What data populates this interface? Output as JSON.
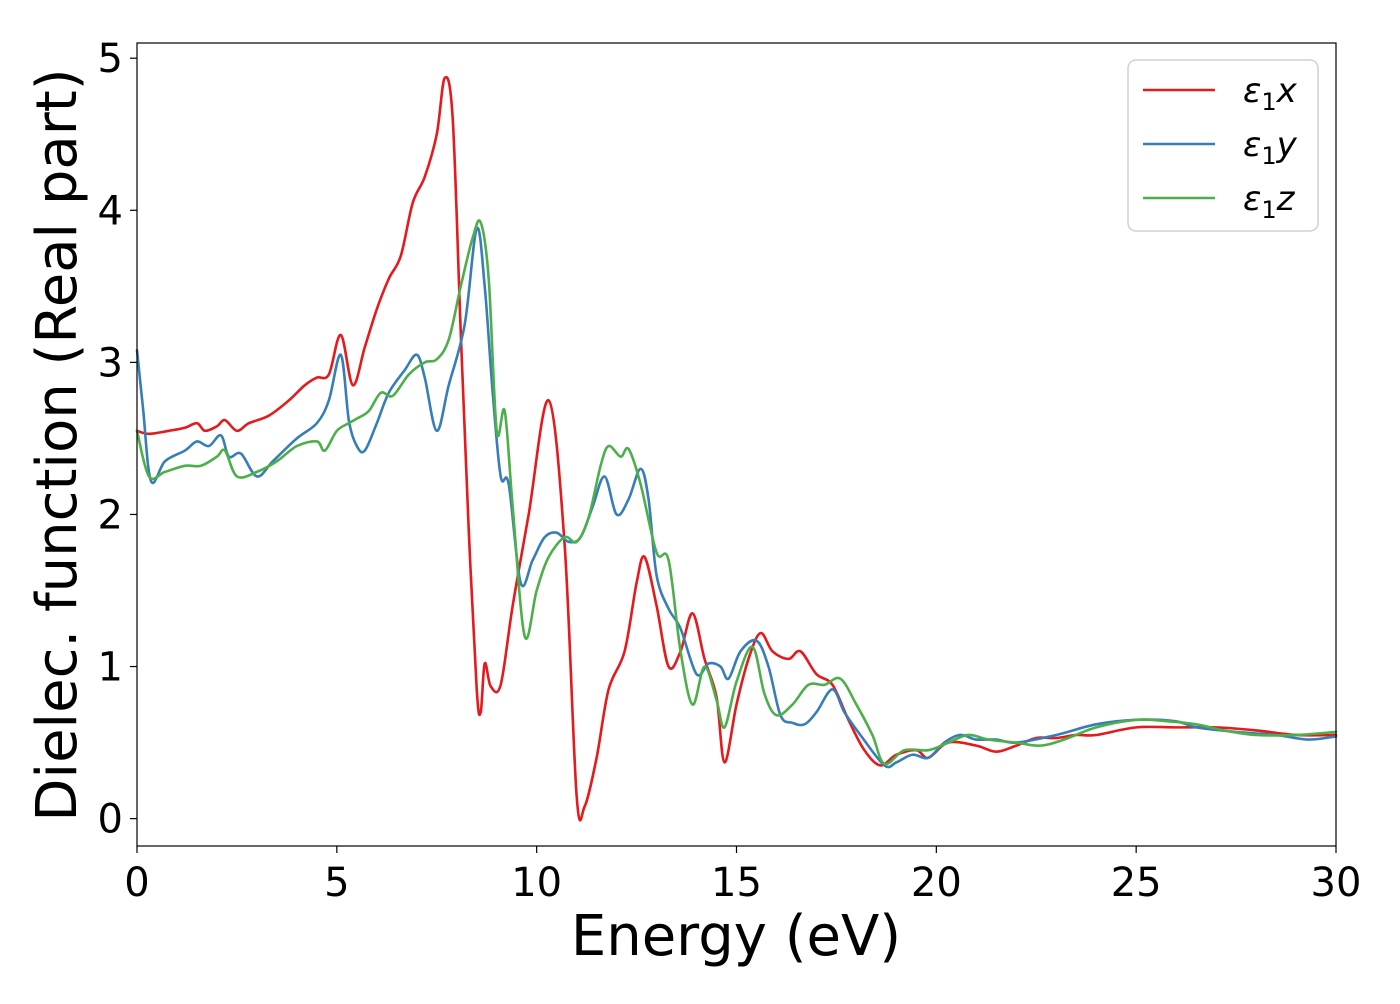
{
  "chart_data": {
    "type": "line",
    "xlabel": "Energy (eV)",
    "ylabel": "Dielec. function (Real part)",
    "xlim": [
      0,
      30
    ],
    "ylim": [
      -0.18,
      5.1
    ],
    "xticks": [
      "0",
      "5",
      "10",
      "15",
      "20",
      "25",
      "30"
    ],
    "yticks": [
      "0",
      "1",
      "2",
      "3",
      "4",
      "5"
    ],
    "grid": false,
    "legend_position": "top-right",
    "series": [
      {
        "name_main": "ε",
        "name_sub": "1",
        "name_suffix": "x",
        "color": "#e41a1c",
        "points": [
          [
            0,
            2.55
          ],
          [
            0.3,
            2.53
          ],
          [
            0.8,
            2.55
          ],
          [
            1.2,
            2.57
          ],
          [
            1.5,
            2.6
          ],
          [
            1.7,
            2.55
          ],
          [
            2,
            2.58
          ],
          [
            2.2,
            2.62
          ],
          [
            2.5,
            2.55
          ],
          [
            2.8,
            2.6
          ],
          [
            3.3,
            2.65
          ],
          [
            3.8,
            2.75
          ],
          [
            4.2,
            2.85
          ],
          [
            4.5,
            2.9
          ],
          [
            4.8,
            2.92
          ],
          [
            5.1,
            3.18
          ],
          [
            5.4,
            2.85
          ],
          [
            5.7,
            3.1
          ],
          [
            6,
            3.35
          ],
          [
            6.3,
            3.55
          ],
          [
            6.6,
            3.7
          ],
          [
            6.9,
            4.05
          ],
          [
            7.2,
            4.22
          ],
          [
            7.5,
            4.5
          ],
          [
            7.7,
            4.87
          ],
          [
            7.9,
            4.6
          ],
          [
            8.1,
            3.2
          ],
          [
            8.3,
            1.9
          ],
          [
            8.5,
            0.85
          ],
          [
            8.6,
            0.7
          ],
          [
            8.7,
            1.02
          ],
          [
            8.85,
            0.87
          ],
          [
            9.1,
            0.88
          ],
          [
            9.4,
            1.4
          ],
          [
            9.8,
            2.0
          ],
          [
            10.3,
            2.75
          ],
          [
            10.7,
            1.8
          ],
          [
            11.0,
            0.15
          ],
          [
            11.2,
            0.08
          ],
          [
            11.5,
            0.4
          ],
          [
            11.8,
            0.85
          ],
          [
            12.2,
            1.1
          ],
          [
            12.5,
            1.55
          ],
          [
            12.7,
            1.72
          ],
          [
            13.0,
            1.4
          ],
          [
            13.3,
            1.0
          ],
          [
            13.6,
            1.1
          ],
          [
            13.9,
            1.35
          ],
          [
            14.2,
            1.05
          ],
          [
            14.5,
            0.8
          ],
          [
            14.7,
            0.37
          ],
          [
            15.0,
            0.75
          ],
          [
            15.3,
            1.05
          ],
          [
            15.6,
            1.22
          ],
          [
            15.9,
            1.1
          ],
          [
            16.3,
            1.05
          ],
          [
            16.6,
            1.1
          ],
          [
            17.0,
            0.95
          ],
          [
            17.4,
            0.88
          ],
          [
            17.8,
            0.65
          ],
          [
            18.2,
            0.45
          ],
          [
            18.6,
            0.35
          ],
          [
            19.0,
            0.42
          ],
          [
            19.5,
            0.45
          ],
          [
            19.8,
            0.4
          ],
          [
            20.3,
            0.5
          ],
          [
            21.0,
            0.48
          ],
          [
            21.5,
            0.44
          ],
          [
            22.0,
            0.48
          ],
          [
            22.5,
            0.53
          ],
          [
            23.0,
            0.53
          ],
          [
            23.5,
            0.55
          ],
          [
            24.0,
            0.55
          ],
          [
            25.0,
            0.6
          ],
          [
            26.0,
            0.6
          ],
          [
            27.0,
            0.6
          ],
          [
            28.0,
            0.58
          ],
          [
            29.0,
            0.55
          ],
          [
            30.0,
            0.55
          ]
        ]
      },
      {
        "name_main": "ε",
        "name_sub": "1",
        "name_suffix": "y",
        "color": "#377eb8",
        "points": [
          [
            0,
            3.08
          ],
          [
            0.15,
            2.7
          ],
          [
            0.35,
            2.22
          ],
          [
            0.7,
            2.35
          ],
          [
            1.2,
            2.42
          ],
          [
            1.5,
            2.48
          ],
          [
            1.8,
            2.45
          ],
          [
            2.1,
            2.52
          ],
          [
            2.3,
            2.38
          ],
          [
            2.6,
            2.4
          ],
          [
            3.0,
            2.25
          ],
          [
            3.4,
            2.35
          ],
          [
            4.0,
            2.5
          ],
          [
            4.5,
            2.6
          ],
          [
            4.8,
            2.75
          ],
          [
            5.1,
            3.05
          ],
          [
            5.3,
            2.62
          ],
          [
            5.5,
            2.45
          ],
          [
            5.7,
            2.42
          ],
          [
            6.0,
            2.6
          ],
          [
            6.3,
            2.8
          ],
          [
            6.7,
            2.95
          ],
          [
            7.0,
            3.05
          ],
          [
            7.2,
            2.9
          ],
          [
            7.5,
            2.55
          ],
          [
            7.8,
            2.85
          ],
          [
            8.2,
            3.25
          ],
          [
            8.5,
            3.88
          ],
          [
            8.7,
            3.5
          ],
          [
            8.9,
            2.8
          ],
          [
            9.1,
            2.25
          ],
          [
            9.3,
            2.2
          ],
          [
            9.6,
            1.55
          ],
          [
            9.9,
            1.7
          ],
          [
            10.2,
            1.85
          ],
          [
            10.5,
            1.88
          ],
          [
            10.8,
            1.82
          ],
          [
            11.1,
            1.85
          ],
          [
            11.4,
            2.05
          ],
          [
            11.7,
            2.25
          ],
          [
            12.0,
            2.0
          ],
          [
            12.3,
            2.1
          ],
          [
            12.6,
            2.3
          ],
          [
            12.8,
            2.1
          ],
          [
            13.0,
            1.6
          ],
          [
            13.3,
            1.38
          ],
          [
            13.6,
            1.25
          ],
          [
            14.0,
            0.95
          ],
          [
            14.3,
            1.02
          ],
          [
            14.6,
            1.0
          ],
          [
            14.8,
            0.92
          ],
          [
            15.1,
            1.1
          ],
          [
            15.5,
            1.17
          ],
          [
            15.8,
            1.0
          ],
          [
            16.1,
            0.68
          ],
          [
            16.4,
            0.63
          ],
          [
            16.7,
            0.62
          ],
          [
            17.0,
            0.7
          ],
          [
            17.4,
            0.85
          ],
          [
            17.7,
            0.7
          ],
          [
            18.1,
            0.55
          ],
          [
            18.7,
            0.35
          ],
          [
            19.0,
            0.37
          ],
          [
            19.4,
            0.42
          ],
          [
            19.8,
            0.4
          ],
          [
            20.2,
            0.5
          ],
          [
            20.6,
            0.55
          ],
          [
            21.0,
            0.52
          ],
          [
            21.5,
            0.52
          ],
          [
            22.0,
            0.5
          ],
          [
            23.0,
            0.55
          ],
          [
            24.0,
            0.62
          ],
          [
            25.0,
            0.65
          ],
          [
            26.0,
            0.64
          ],
          [
            26.5,
            0.6
          ],
          [
            27.5,
            0.57
          ],
          [
            28.5,
            0.55
          ],
          [
            29.3,
            0.52
          ],
          [
            30.0,
            0.54
          ]
        ]
      },
      {
        "name_main": "ε",
        "name_sub": "1",
        "name_suffix": "z",
        "color": "#4daf4a",
        "points": [
          [
            0,
            2.55
          ],
          [
            0.3,
            2.25
          ],
          [
            0.7,
            2.28
          ],
          [
            1.2,
            2.32
          ],
          [
            1.6,
            2.32
          ],
          [
            2.0,
            2.38
          ],
          [
            2.2,
            2.42
          ],
          [
            2.5,
            2.25
          ],
          [
            3.0,
            2.28
          ],
          [
            3.5,
            2.35
          ],
          [
            4.0,
            2.45
          ],
          [
            4.5,
            2.48
          ],
          [
            4.7,
            2.42
          ],
          [
            5.0,
            2.55
          ],
          [
            5.3,
            2.6
          ],
          [
            5.5,
            2.63
          ],
          [
            5.8,
            2.68
          ],
          [
            6.1,
            2.8
          ],
          [
            6.4,
            2.78
          ],
          [
            6.8,
            2.92
          ],
          [
            7.2,
            3.0
          ],
          [
            7.5,
            3.02
          ],
          [
            7.8,
            3.15
          ],
          [
            8.1,
            3.5
          ],
          [
            8.4,
            3.82
          ],
          [
            8.6,
            3.92
          ],
          [
            8.8,
            3.55
          ],
          [
            9.0,
            2.55
          ],
          [
            9.2,
            2.68
          ],
          [
            9.4,
            2.05
          ],
          [
            9.7,
            1.2
          ],
          [
            10.0,
            1.5
          ],
          [
            10.3,
            1.72
          ],
          [
            10.7,
            1.85
          ],
          [
            11.0,
            1.82
          ],
          [
            11.3,
            1.98
          ],
          [
            11.6,
            2.32
          ],
          [
            11.8,
            2.45
          ],
          [
            12.1,
            2.38
          ],
          [
            12.3,
            2.43
          ],
          [
            12.6,
            2.2
          ],
          [
            13.0,
            1.75
          ],
          [
            13.3,
            1.7
          ],
          [
            13.6,
            1.1
          ],
          [
            13.9,
            0.75
          ],
          [
            14.2,
            1.0
          ],
          [
            14.5,
            0.78
          ],
          [
            14.7,
            0.6
          ],
          [
            15.0,
            0.9
          ],
          [
            15.4,
            1.13
          ],
          [
            15.7,
            0.82
          ],
          [
            16.0,
            0.68
          ],
          [
            16.4,
            0.75
          ],
          [
            16.8,
            0.88
          ],
          [
            17.2,
            0.88
          ],
          [
            17.6,
            0.92
          ],
          [
            18.0,
            0.75
          ],
          [
            18.4,
            0.55
          ],
          [
            18.7,
            0.36
          ],
          [
            19.2,
            0.45
          ],
          [
            19.8,
            0.45
          ],
          [
            20.3,
            0.5
          ],
          [
            20.8,
            0.55
          ],
          [
            21.3,
            0.52
          ],
          [
            22.0,
            0.5
          ],
          [
            22.6,
            0.48
          ],
          [
            23.2,
            0.52
          ],
          [
            24.0,
            0.6
          ],
          [
            25.0,
            0.65
          ],
          [
            25.8,
            0.64
          ],
          [
            26.5,
            0.62
          ],
          [
            27.2,
            0.58
          ],
          [
            28.0,
            0.55
          ],
          [
            29.0,
            0.55
          ],
          [
            30.0,
            0.57
          ]
        ]
      }
    ]
  }
}
